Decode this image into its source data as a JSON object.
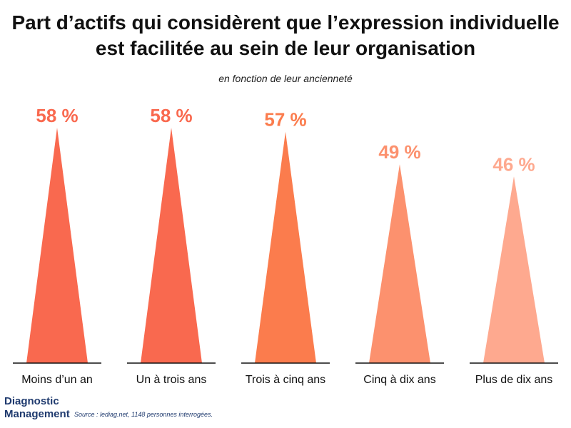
{
  "chart_data": {
    "type": "bar",
    "title_line1": "Part d’actifs qui considèrent que l’expression individuelle",
    "title_line2": "est facilitée au sein de leur organisation",
    "subtitle": "en fonction de leur ancienneté",
    "categories": [
      "Moins d’un an",
      "Un à trois ans",
      "Trois à cinq ans",
      "Cinq à dix ans",
      "Plus de dix ans"
    ],
    "values": [
      58,
      58,
      57,
      49,
      46
    ],
    "value_labels": [
      "58 %",
      "58 %",
      "57 %",
      "49 %",
      "46 %"
    ],
    "colors": [
      "#f9694f",
      "#f9694f",
      "#fb7c4d",
      "#fc916e",
      "#fea98f"
    ],
    "ylim": [
      0,
      58
    ],
    "bar_shape": "triangle"
  },
  "footer": {
    "brand_line1": "Diagnostic",
    "brand_line2": "Management",
    "source": "Source : lediag.net, 1148 personnes interrogées."
  }
}
